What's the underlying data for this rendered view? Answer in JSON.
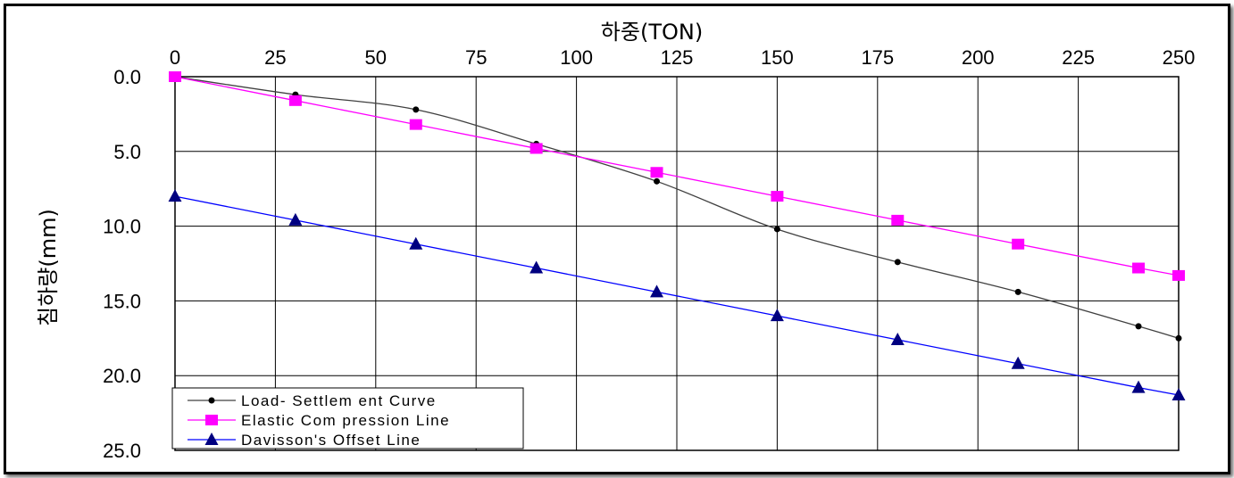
{
  "chart_data": {
    "type": "line",
    "xlabel": "하중(TON)",
    "ylabel": "침하량(mm)",
    "x_ticks": [
      "0",
      "25",
      "50",
      "75",
      "100",
      "125",
      "150",
      "175",
      "200",
      "225",
      "250"
    ],
    "y_ticks": [
      "0.0",
      "5.0",
      "10.0",
      "15.0",
      "20.0",
      "25.0"
    ],
    "xlim": [
      0,
      250
    ],
    "ylim": [
      0,
      25
    ],
    "x_axis_position": "top",
    "y_axis_inverted": true,
    "grid": true,
    "legend_position": "bottom-left",
    "series": [
      {
        "name": "Load- Settlem ent Curve",
        "color": "#000000",
        "line_color": "#404040",
        "marker": "circle",
        "points": [
          [
            0,
            0.0
          ],
          [
            30,
            1.2
          ],
          [
            60,
            2.2
          ],
          [
            90,
            4.5
          ],
          [
            120,
            7.0
          ],
          [
            150,
            10.2
          ],
          [
            180,
            12.4
          ],
          [
            210,
            14.4
          ],
          [
            240,
            16.7
          ],
          [
            250,
            17.5
          ]
        ]
      },
      {
        "name": "Elastic Com pression Line",
        "color": "#ff00ff",
        "line_color": "#ff00ff",
        "marker": "square",
        "points": [
          [
            0,
            0.0
          ],
          [
            30,
            1.6
          ],
          [
            60,
            3.2
          ],
          [
            90,
            4.8
          ],
          [
            120,
            6.4
          ],
          [
            150,
            8.0
          ],
          [
            180,
            9.6
          ],
          [
            210,
            11.2
          ],
          [
            240,
            12.8
          ],
          [
            250,
            13.3
          ]
        ]
      },
      {
        "name": "Davisson's Offset Line",
        "color": "#000080",
        "line_color": "#0000ff",
        "marker": "triangle",
        "points": [
          [
            0,
            8.0
          ],
          [
            30,
            9.6
          ],
          [
            60,
            11.2
          ],
          [
            90,
            12.8
          ],
          [
            120,
            14.4
          ],
          [
            150,
            16.0
          ],
          [
            180,
            17.6
          ],
          [
            210,
            19.2
          ],
          [
            240,
            20.8
          ],
          [
            250,
            21.3
          ]
        ]
      }
    ]
  }
}
